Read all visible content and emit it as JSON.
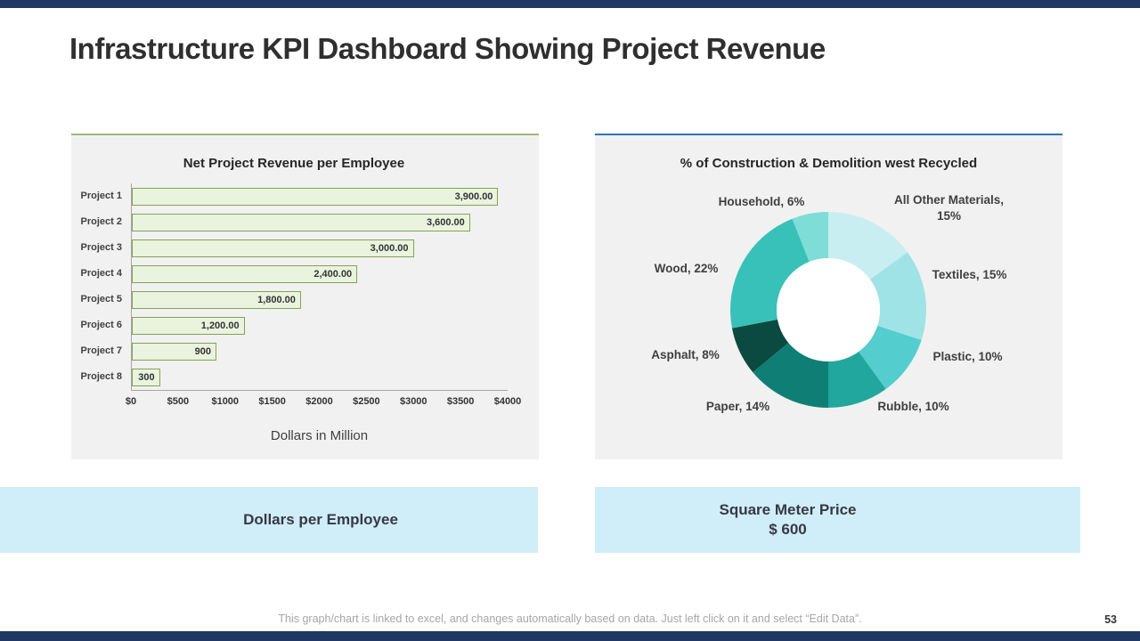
{
  "slide": {
    "title": "Infrastructure KPI Dashboard Showing Project Revenue",
    "page_number": "53",
    "footer_note": "This graph/chart is linked to excel, and changes automatically based on data. Just left click on it and select “Edit Data”."
  },
  "theme": {
    "accent_navy": "#1f3864",
    "panel_bg": "#f1f1f1",
    "caption_bg": "#cfeef9",
    "left_panel_line": "#a3b97a",
    "right_panel_line": "#2e74b5",
    "bar_fill": "#eaf3de",
    "bar_border": "#83a254",
    "axis_line": "#a6a6a6",
    "donut_hole": "#ffffff"
  },
  "captions": {
    "left": "Dollars per Employee",
    "right_line1": "Square Meter Price",
    "right_line2": "$ 600"
  },
  "chart_data": [
    {
      "type": "bar",
      "orientation": "horizontal",
      "title": "Net Project Revenue per Employee",
      "categories": [
        "Project 1",
        "Project 2",
        "Project 3",
        "Project 4",
        "Project 5",
        "Project 6",
        "Project 7",
        "Project 8"
      ],
      "values": [
        3900,
        3600,
        3000,
        2400,
        1800,
        1200,
        900,
        300
      ],
      "value_labels": [
        "3,900.00",
        "3,600.00",
        "3,000.00",
        "2,400.00",
        "1,800.00",
        "1,200.00",
        "900",
        "300"
      ],
      "x_ticks": [
        "$0",
        "$500",
        "$1000",
        "$1500",
        "$2000",
        "$2500",
        "$3000",
        "$3500",
        "$4000"
      ],
      "xlim": [
        0,
        4000
      ],
      "xlabel": "Dollars in Million",
      "grid": false,
      "legend": false
    },
    {
      "type": "donut",
      "title": "% of Construction & Demolition west Recycled",
      "start_angle_deg": 0,
      "direction": "clockwise",
      "legend": false,
      "segments": [
        {
          "label": "All Other Materials",
          "pct": 15,
          "color": "#c8eef1",
          "display": "All Other Materials, 15%"
        },
        {
          "label": "Textiles",
          "pct": 15,
          "color": "#9fe3e6",
          "display": "Textiles, 15%"
        },
        {
          "label": "Plastic",
          "pct": 10,
          "color": "#54cdcf",
          "display": "Plastic, 10%"
        },
        {
          "label": "Rubble",
          "pct": 10,
          "color": "#21a79e",
          "display": "Rubble, 10%"
        },
        {
          "label": "Paper",
          "pct": 14,
          "color": "#0f7f75",
          "display": "Paper, 14%"
        },
        {
          "label": "Asphalt",
          "pct": 8,
          "color": "#0b4a40",
          "display": "Asphalt, 8%"
        },
        {
          "label": "Wood",
          "pct": 22,
          "color": "#38c1b8",
          "display": "Wood, 22%"
        },
        {
          "label": "Household",
          "pct": 6,
          "color": "#7eddd6",
          "display": "Household, 6%"
        }
      ]
    }
  ]
}
